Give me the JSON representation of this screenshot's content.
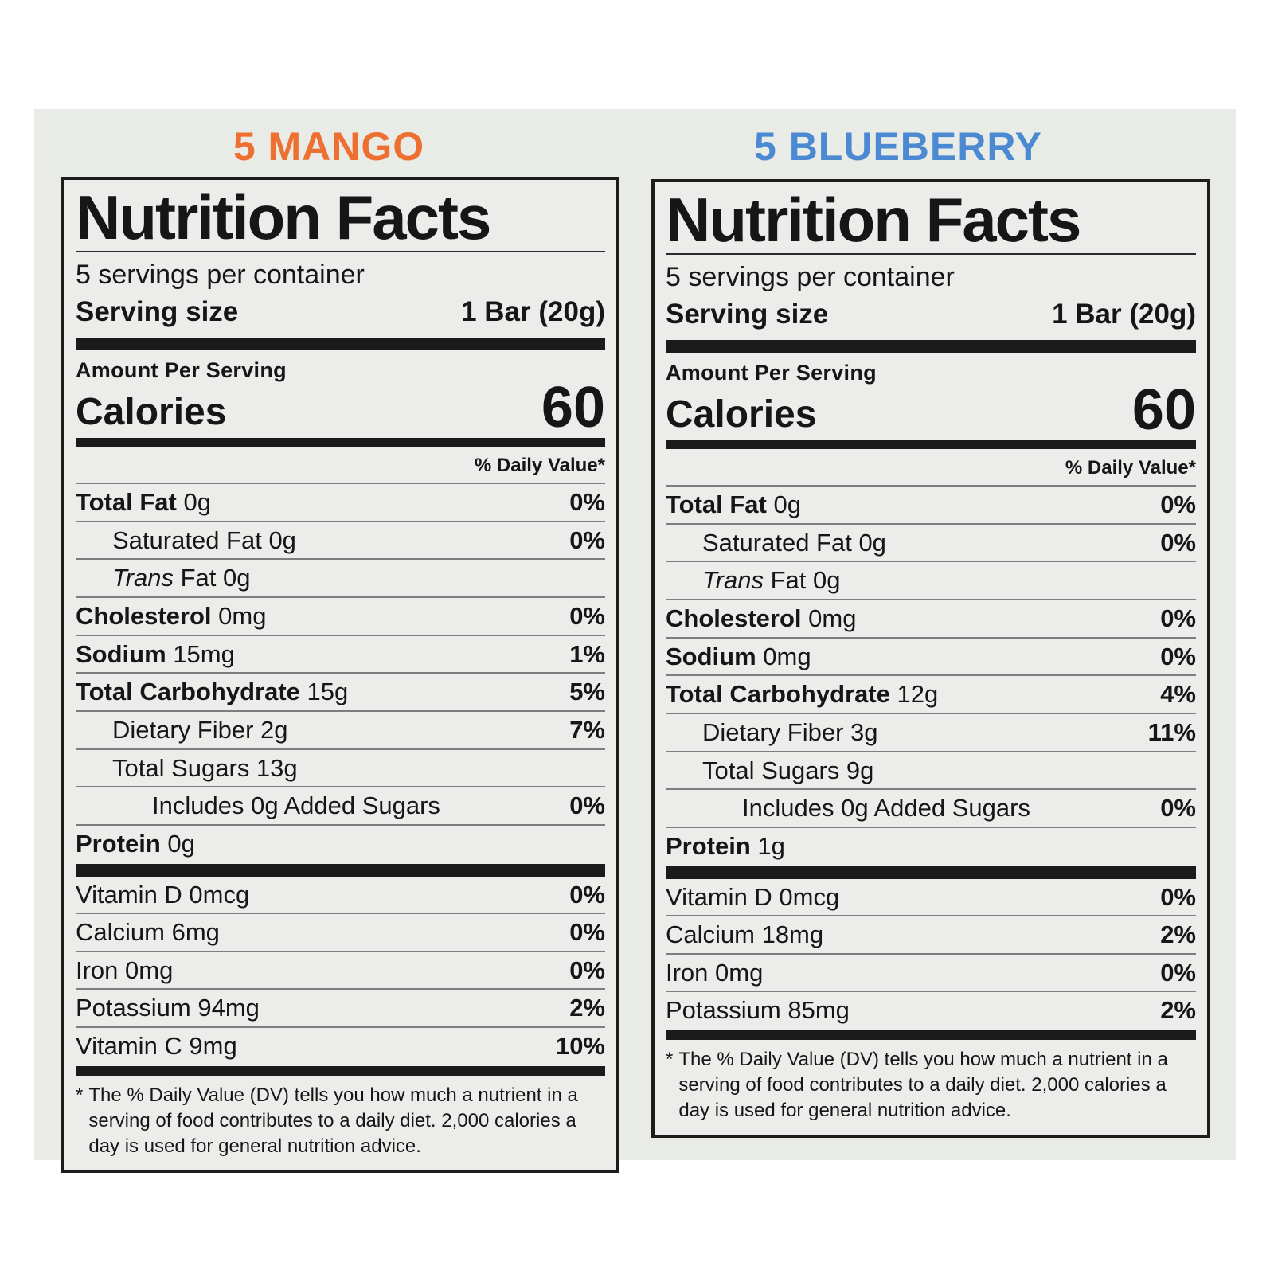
{
  "page": {
    "background": "#ffffff",
    "panel_bg": "#e9ebe7",
    "box_bg": "#ecedea"
  },
  "labels": [
    {
      "flavor": "5 MANGO",
      "flavor_color": "#ed7030",
      "title": "Nutrition Facts",
      "servings": "5 servings per container",
      "serving_size_label": "Serving size",
      "serving_size_value": "1 Bar (20g)",
      "amount_per_serving": "Amount Per Serving",
      "calories_label": "Calories",
      "calories_value": "60",
      "dv_header": "% Daily Value*",
      "rows": [
        {
          "strong": "Total Fat",
          "em": "",
          "text": " 0g",
          "dv": "0%",
          "indent": 0
        },
        {
          "strong": "",
          "em": "",
          "text": "Saturated Fat 0g",
          "dv": "0%",
          "indent": 1
        },
        {
          "strong": "",
          "em": "Trans",
          "text": " Fat 0g",
          "dv": "",
          "indent": 1
        },
        {
          "strong": "Cholesterol",
          "em": "",
          "text": " 0mg",
          "dv": "0%",
          "indent": 0
        },
        {
          "strong": "Sodium",
          "em": "",
          "text": " 15mg",
          "dv": "1%",
          "indent": 0
        },
        {
          "strong": "Total Carbohydrate",
          "em": "",
          "text": " 15g",
          "dv": "5%",
          "indent": 0
        },
        {
          "strong": "",
          "em": "",
          "text": "Dietary Fiber 2g",
          "dv": "7%",
          "indent": 1
        },
        {
          "strong": "",
          "em": "",
          "text": "Total Sugars 13g",
          "dv": "",
          "indent": 1
        },
        {
          "strong": "",
          "em": "",
          "text": "Includes 0g Added Sugars",
          "dv": "0%",
          "indent": 2
        },
        {
          "strong": "Protein",
          "em": "",
          "text": " 0g",
          "dv": "",
          "indent": 0
        }
      ],
      "vitamins": [
        {
          "strong": "",
          "em": "",
          "text": "Vitamin D 0mcg",
          "dv": "0%",
          "indent": 0
        },
        {
          "strong": "",
          "em": "",
          "text": "Calcium 6mg",
          "dv": "0%",
          "indent": 0
        },
        {
          "strong": "",
          "em": "",
          "text": "Iron 0mg",
          "dv": "0%",
          "indent": 0
        },
        {
          "strong": "",
          "em": "",
          "text": "Potassium 94mg",
          "dv": "2%",
          "indent": 0
        },
        {
          "strong": "",
          "em": "",
          "text": "Vitamin C 9mg",
          "dv": "10%",
          "indent": 0
        }
      ],
      "footnote_star": "*",
      "footnote": "The % Daily Value (DV) tells you how much a nutrient in a serving of food contributes to a daily diet. 2,000 calories a day is used for general nutrition advice."
    },
    {
      "flavor": "5 BLUEBERRY",
      "flavor_color": "#4b8ad2",
      "title": "Nutrition Facts",
      "servings": "5 servings per container",
      "serving_size_label": "Serving size",
      "serving_size_value": "1 Bar (20g)",
      "amount_per_serving": "Amount Per Serving",
      "calories_label": "Calories",
      "calories_value": "60",
      "dv_header": "% Daily Value*",
      "rows": [
        {
          "strong": "Total Fat",
          "em": "",
          "text": " 0g",
          "dv": "0%",
          "indent": 0
        },
        {
          "strong": "",
          "em": "",
          "text": "Saturated Fat 0g",
          "dv": "0%",
          "indent": 1
        },
        {
          "strong": "",
          "em": "Trans",
          "text": " Fat 0g",
          "dv": "",
          "indent": 1
        },
        {
          "strong": "Cholesterol",
          "em": "",
          "text": " 0mg",
          "dv": "0%",
          "indent": 0
        },
        {
          "strong": "Sodium",
          "em": "",
          "text": " 0mg",
          "dv": "0%",
          "indent": 0
        },
        {
          "strong": "Total Carbohydrate",
          "em": "",
          "text": " 12g",
          "dv": "4%",
          "indent": 0
        },
        {
          "strong": "",
          "em": "",
          "text": "Dietary Fiber 3g",
          "dv": "11%",
          "indent": 1
        },
        {
          "strong": "",
          "em": "",
          "text": "Total Sugars 9g",
          "dv": "",
          "indent": 1
        },
        {
          "strong": "",
          "em": "",
          "text": "Includes 0g Added Sugars",
          "dv": "0%",
          "indent": 2
        },
        {
          "strong": "Protein",
          "em": "",
          "text": " 1g",
          "dv": "",
          "indent": 0
        }
      ],
      "vitamins": [
        {
          "strong": "",
          "em": "",
          "text": "Vitamin D 0mcg",
          "dv": "0%",
          "indent": 0
        },
        {
          "strong": "",
          "em": "",
          "text": "Calcium 18mg",
          "dv": "2%",
          "indent": 0
        },
        {
          "strong": "",
          "em": "",
          "text": "Iron 0mg",
          "dv": "0%",
          "indent": 0
        },
        {
          "strong": "",
          "em": "",
          "text": "Potassium 85mg",
          "dv": "2%",
          "indent": 0
        }
      ],
      "footnote_star": "*",
      "footnote": "The % Daily Value (DV) tells you how much a nutrient in a serving of food contributes to a daily diet. 2,000 calories a day is used for general nutrition advice."
    }
  ]
}
